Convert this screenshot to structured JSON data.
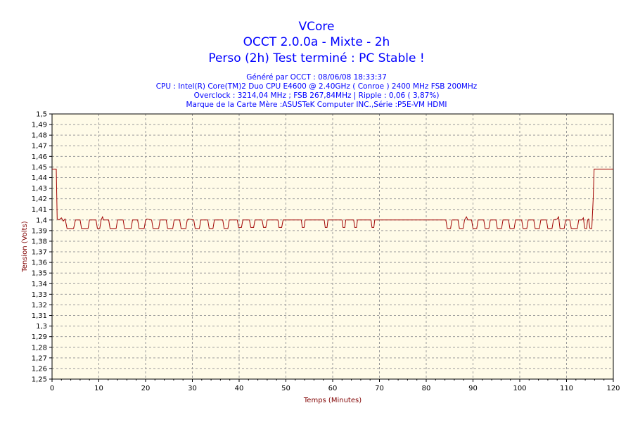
{
  "header": {
    "title": "VCore",
    "subtitle": "OCCT 2.0.0a - Mixte - 2h",
    "status": "Perso (2h) Test terminé : PC Stable !",
    "generated": "Généré par OCCT : 08/06/08 18:33:37",
    "cpu": "CPU : Intel(R) Core(TM)2 Duo CPU E4600 @ 2.40GHz ( Conroe ) 2400 MHz FSB 200MHz",
    "overclock": "Overclock : 3214,04 MHz ; FSB 267,84MHz | Ripple : 0,06 ( 3,87%)",
    "motherboard": "Marque de la Carte Mère :ASUSTeK Computer INC.,Série :P5E-VM HDMI"
  },
  "colors": {
    "plot_background": "#fffbe8",
    "grid": "#9a9a9a",
    "line": "#a00000",
    "title": "#0000ff",
    "axis_title": "#800000"
  },
  "chart_data": {
    "type": "line",
    "xlabel": "Temps (Minutes)",
    "ylabel": "Tension (Volts)",
    "xlim": [
      0,
      120
    ],
    "ylim": [
      1.25,
      1.5
    ],
    "x_ticks": [
      "0",
      "10",
      "20",
      "30",
      "40",
      "50",
      "60",
      "70",
      "80",
      "90",
      "100",
      "110",
      "120"
    ],
    "y_ticks": [
      "1,25",
      "1,26",
      "1,27",
      "1,28",
      "1,29",
      "1,3",
      "1,31",
      "1,32",
      "1,33",
      "1,34",
      "1,35",
      "1,36",
      "1,37",
      "1,38",
      "1,39",
      "1,4",
      "1,41",
      "1,42",
      "1,43",
      "1,44",
      "1,45",
      "1,46",
      "1,47",
      "1,48",
      "1,49",
      "1,5"
    ],
    "grid": true,
    "series": [
      {
        "values": [
          [
            0,
            1.448
          ],
          [
            0.9,
            1.448
          ],
          [
            1.1,
            1.401
          ],
          [
            1.5,
            1.4
          ],
          [
            2.0,
            1.402
          ],
          [
            2.4,
            1.399
          ],
          [
            2.8,
            1.401
          ],
          [
            3.2,
            1.392
          ],
          [
            4.6,
            1.392
          ],
          [
            5.0,
            1.4
          ],
          [
            6.0,
            1.4
          ],
          [
            6.3,
            1.392
          ],
          [
            7.7,
            1.392
          ],
          [
            8.0,
            1.4
          ],
          [
            9.4,
            1.4
          ],
          [
            9.7,
            1.392
          ],
          [
            10.2,
            1.392
          ],
          [
            10.5,
            1.4
          ],
          [
            10.8,
            1.403
          ],
          [
            11.0,
            1.4
          ],
          [
            12.1,
            1.4
          ],
          [
            12.4,
            1.392
          ],
          [
            13.7,
            1.392
          ],
          [
            14.0,
            1.4
          ],
          [
            15.2,
            1.4
          ],
          [
            15.5,
            1.392
          ],
          [
            16.9,
            1.392
          ],
          [
            17.2,
            1.4
          ],
          [
            18.3,
            1.4
          ],
          [
            18.6,
            1.392
          ],
          [
            19.7,
            1.392
          ],
          [
            20.0,
            1.4
          ],
          [
            20.3,
            1.401
          ],
          [
            21.3,
            1.4
          ],
          [
            21.6,
            1.392
          ],
          [
            22.8,
            1.392
          ],
          [
            23.1,
            1.4
          ],
          [
            24.4,
            1.4
          ],
          [
            24.7,
            1.392
          ],
          [
            25.8,
            1.392
          ],
          [
            26.1,
            1.4
          ],
          [
            27.3,
            1.4
          ],
          [
            27.6,
            1.392
          ],
          [
            28.6,
            1.392
          ],
          [
            28.9,
            1.4
          ],
          [
            29.2,
            1.401
          ],
          [
            30.3,
            1.4
          ],
          [
            30.6,
            1.392
          ],
          [
            31.5,
            1.392
          ],
          [
            31.8,
            1.4
          ],
          [
            33.3,
            1.4
          ],
          [
            33.6,
            1.392
          ],
          [
            34.4,
            1.392
          ],
          [
            34.7,
            1.4
          ],
          [
            36.5,
            1.4
          ],
          [
            36.8,
            1.392
          ],
          [
            37.6,
            1.392
          ],
          [
            37.9,
            1.4
          ],
          [
            39.6,
            1.4
          ],
          [
            39.9,
            1.393
          ],
          [
            40.5,
            1.393
          ],
          [
            40.8,
            1.4
          ],
          [
            42.2,
            1.4
          ],
          [
            42.5,
            1.393
          ],
          [
            43.1,
            1.393
          ],
          [
            43.4,
            1.4
          ],
          [
            44.9,
            1.4
          ],
          [
            45.2,
            1.393
          ],
          [
            45.7,
            1.393
          ],
          [
            46.0,
            1.4
          ],
          [
            48.3,
            1.4
          ],
          [
            48.5,
            1.393
          ],
          [
            49.1,
            1.393
          ],
          [
            49.4,
            1.4
          ],
          [
            53.3,
            1.4
          ],
          [
            53.5,
            1.393
          ],
          [
            53.9,
            1.393
          ],
          [
            54.1,
            1.4
          ],
          [
            58.2,
            1.4
          ],
          [
            58.4,
            1.393
          ],
          [
            58.8,
            1.393
          ],
          [
            59.0,
            1.4
          ],
          [
            62.0,
            1.4
          ],
          [
            62.2,
            1.393
          ],
          [
            62.6,
            1.393
          ],
          [
            62.8,
            1.4
          ],
          [
            64.5,
            1.4
          ],
          [
            64.7,
            1.393
          ],
          [
            65.1,
            1.393
          ],
          [
            65.3,
            1.4
          ],
          [
            68.2,
            1.4
          ],
          [
            68.4,
            1.393
          ],
          [
            68.8,
            1.393
          ],
          [
            69.0,
            1.4
          ],
          [
            84.2,
            1.4
          ],
          [
            84.5,
            1.392
          ],
          [
            85.2,
            1.392
          ],
          [
            85.5,
            1.4
          ],
          [
            86.8,
            1.4
          ],
          [
            87.1,
            1.392
          ],
          [
            87.9,
            1.392
          ],
          [
            88.2,
            1.4
          ],
          [
            88.6,
            1.403
          ],
          [
            88.9,
            1.4
          ],
          [
            89.7,
            1.4
          ],
          [
            90.0,
            1.392
          ],
          [
            90.8,
            1.392
          ],
          [
            91.1,
            1.4
          ],
          [
            92.3,
            1.4
          ],
          [
            92.6,
            1.392
          ],
          [
            93.4,
            1.392
          ],
          [
            93.7,
            1.4
          ],
          [
            94.9,
            1.4
          ],
          [
            95.2,
            1.392
          ],
          [
            96.1,
            1.392
          ],
          [
            96.4,
            1.4
          ],
          [
            97.6,
            1.4
          ],
          [
            97.9,
            1.392
          ],
          [
            98.8,
            1.392
          ],
          [
            99.1,
            1.4
          ],
          [
            100.4,
            1.4
          ],
          [
            100.7,
            1.392
          ],
          [
            101.5,
            1.392
          ],
          [
            101.8,
            1.4
          ],
          [
            103.0,
            1.4
          ],
          [
            103.3,
            1.392
          ],
          [
            104.2,
            1.392
          ],
          [
            104.5,
            1.4
          ],
          [
            105.7,
            1.4
          ],
          [
            106.0,
            1.392
          ],
          [
            106.9,
            1.392
          ],
          [
            107.2,
            1.4
          ],
          [
            108.0,
            1.401
          ],
          [
            108.3,
            1.403
          ],
          [
            108.6,
            1.392
          ],
          [
            109.5,
            1.392
          ],
          [
            109.8,
            1.4
          ],
          [
            110.7,
            1.4
          ],
          [
            111.0,
            1.392
          ],
          [
            112.3,
            1.392
          ],
          [
            112.6,
            1.4
          ],
          [
            113.3,
            1.4
          ],
          [
            113.6,
            1.402
          ],
          [
            113.9,
            1.392
          ],
          [
            114.3,
            1.392
          ],
          [
            114.5,
            1.4
          ],
          [
            114.7,
            1.401
          ],
          [
            115.0,
            1.392
          ],
          [
            115.4,
            1.392
          ],
          [
            115.7,
            1.42
          ],
          [
            115.9,
            1.448
          ],
          [
            120,
            1.448
          ]
        ]
      }
    ]
  }
}
